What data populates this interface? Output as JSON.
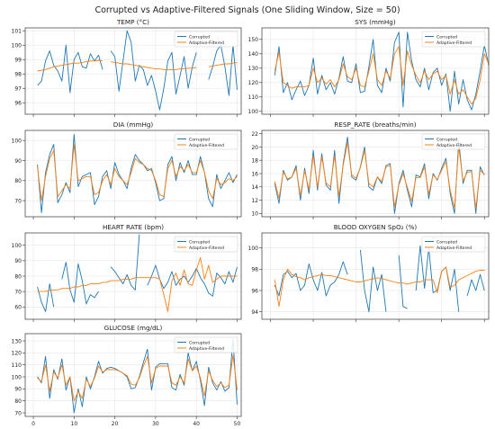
{
  "figure": {
    "title": "Corrupted vs Adaptive-Filtered Signals (One Sliding Window, Size = 50)"
  },
  "colors": {
    "corrupted": "#1f77b4",
    "filtered": "#ff7f0e",
    "grid": "#e6e6e6",
    "axis": "#333333"
  },
  "legend": {
    "corrupted_label": "Corrupted",
    "filtered_label": "Adaptive-Filtered",
    "placement": "top-right"
  },
  "chart_data": [
    {
      "type": "line",
      "title": "TEMP (°C)",
      "xlim": [
        -2,
        51
      ],
      "ylim": [
        95.2,
        101.2
      ],
      "yticks": [
        96,
        97,
        98,
        99,
        100,
        101
      ],
      "xticks": [
        0,
        10,
        20,
        30,
        40,
        50
      ],
      "show_xtick_labels": false,
      "series": [
        {
          "name": "Corrupted",
          "values": [
            null,
            97.2,
            97.5,
            98.9,
            99.6,
            98.6,
            98.2,
            97.5,
            100.0,
            96.7,
            99.0,
            99.5,
            98.5,
            98.4,
            99.4,
            98.9,
            99.3,
            98.3,
            null,
            99.6,
            99.2,
            96.8,
            98.9,
            101.0,
            100.2,
            97.5,
            98.6,
            98.3,
            97.2,
            97.9,
            96.8,
            95.5,
            97.0,
            98.9,
            99.5,
            96.6,
            97.9,
            99.2,
            97.0,
            98.5,
            99.5,
            null,
            null,
            97.6,
            98.5,
            99.6,
            100.0,
            98.5,
            96.5,
            100.0,
            96.9
          ]
        },
        {
          "name": "Adaptive-Filtered",
          "values": [
            null,
            98.2,
            98.25,
            98.3,
            98.4,
            98.5,
            98.55,
            98.6,
            98.65,
            98.7,
            98.75,
            98.75,
            98.8,
            98.85,
            98.9,
            98.9,
            98.95,
            98.9,
            null,
            98.85,
            98.8,
            98.75,
            98.7,
            98.7,
            98.65,
            98.6,
            98.55,
            98.5,
            98.45,
            98.4,
            98.35,
            98.35,
            98.3,
            98.3,
            98.3,
            98.3,
            98.35,
            98.35,
            98.4,
            98.4,
            98.45,
            null,
            null,
            98.5,
            98.55,
            98.6,
            98.65,
            98.7,
            98.7,
            98.75,
            98.8
          ]
        }
      ]
    },
    {
      "type": "line",
      "title": "SYS (mmHg)",
      "xlim": [
        -2,
        51
      ],
      "ylim": [
        98,
        158
      ],
      "yticks": [
        100,
        110,
        120,
        130,
        140,
        150
      ],
      "xticks": [
        0,
        10,
        20,
        30,
        40,
        50
      ],
      "show_xtick_labels": false,
      "series": [
        {
          "name": "Corrupted",
          "values": [
            null,
            125,
            145,
            113,
            120,
            108,
            115,
            121,
            111,
            118,
            137,
            112,
            125,
            115,
            120,
            112,
            123,
            138,
            121,
            120,
            133,
            113,
            114,
            131,
            150,
            118,
            113,
            130,
            121,
            148,
            155,
            103,
            155,
            135,
            122,
            117,
            130,
            115,
            127,
            130,
            118,
            126,
            100,
            128,
            105,
            122,
            108,
            101,
            112,
            128,
            146,
            132
          ]
        },
        {
          "name": "Adaptive-Filtered",
          "values": [
            null,
            128,
            141,
            120,
            118,
            116,
            117,
            117,
            117,
            118,
            130,
            120,
            123,
            119,
            122,
            117,
            122,
            133,
            124,
            122,
            130,
            118,
            117,
            128,
            140,
            122,
            118,
            128,
            123,
            140,
            145,
            118,
            142,
            132,
            125,
            120,
            128,
            122,
            126,
            128,
            122,
            125,
            112,
            122,
            112,
            115,
            110,
            105,
            109,
            122,
            140,
            133
          ]
        }
      ]
    },
    {
      "type": "line",
      "title": "DIA (mmHg)",
      "xlim": [
        -2,
        51
      ],
      "ylim": [
        62,
        105
      ],
      "yticks": [
        70,
        80,
        90,
        100
      ],
      "xticks": [
        0,
        10,
        20,
        30,
        40,
        50
      ],
      "show_xtick_labels": false,
      "series": [
        {
          "name": "Corrupted",
          "values": [
            null,
            88,
            64,
            84,
            93,
            98,
            69,
            73,
            79,
            74,
            103,
            77,
            82,
            83,
            84,
            68,
            72,
            82,
            85,
            76,
            89,
            83,
            80,
            76,
            86,
            93,
            90,
            88,
            85,
            86,
            79,
            70,
            71,
            88,
            92,
            80,
            89,
            84,
            90,
            83,
            83,
            92,
            84,
            71,
            67,
            83,
            76,
            80,
            84,
            79,
            83
          ]
        },
        {
          "name": "Adaptive-Filtered",
          "values": [
            null,
            87,
            70,
            82,
            91,
            95,
            72,
            75,
            78,
            76,
            98,
            80,
            81,
            82,
            82,
            73,
            74,
            80,
            83,
            78,
            86,
            82,
            80,
            78,
            84,
            91,
            89,
            88,
            86,
            85,
            80,
            73,
            72,
            86,
            90,
            82,
            87,
            85,
            88,
            84,
            84,
            90,
            84,
            75,
            71,
            81,
            78,
            79,
            81,
            80,
            82
          ]
        }
      ]
    },
    {
      "type": "line",
      "title": "RESP_RATE (breaths/min)",
      "xlim": [
        -2,
        51
      ],
      "ylim": [
        9.5,
        22.5
      ],
      "yticks": [
        10,
        12,
        14,
        16,
        18,
        20,
        22
      ],
      "xticks": [
        0,
        10,
        20,
        30,
        40,
        50
      ],
      "show_xtick_labels": false,
      "series": [
        {
          "name": "Corrupted",
          "values": [
            null,
            14.5,
            11.5,
            16.5,
            15.0,
            15.5,
            17.2,
            12.0,
            16.8,
            13.0,
            19.5,
            13.5,
            19.0,
            14.3,
            13.5,
            19.5,
            11.5,
            17.5,
            21.5,
            15.5,
            15.0,
            17.0,
            20.0,
            14.0,
            13.5,
            15.5,
            14.5,
            17.2,
            17.5,
            10.0,
            14.5,
            16.5,
            13.5,
            11.0,
            15.8,
            15.5,
            17.5,
            12.2,
            16.0,
            15.0,
            16.8,
            18.3,
            13.0,
            10.0,
            21.0,
            14.5,
            16.5,
            16.5,
            10.0,
            17.0,
            15.8
          ]
        },
        {
          "name": "Adaptive-Filtered",
          "values": [
            null,
            14.8,
            12.3,
            16.2,
            15.2,
            15.5,
            16.8,
            12.7,
            16.4,
            13.6,
            18.7,
            14.0,
            18.5,
            14.6,
            14.0,
            18.7,
            12.6,
            17.2,
            20.7,
            15.8,
            15.3,
            16.9,
            19.5,
            14.5,
            14.0,
            15.5,
            14.8,
            17.0,
            17.2,
            11.0,
            14.3,
            16.0,
            13.9,
            11.8,
            15.4,
            15.4,
            17.0,
            12.9,
            15.8,
            15.1,
            16.5,
            17.8,
            13.5,
            10.8,
            20.0,
            14.9,
            16.2,
            16.3,
            10.8,
            16.5,
            15.9
          ]
        }
      ]
    },
    {
      "type": "line",
      "title": "HEART RATE (bpm)",
      "xlim": [
        -2,
        51
      ],
      "ylim": [
        52,
        108
      ],
      "yticks": [
        60,
        70,
        80,
        90,
        100
      ],
      "xticks": [
        0,
        10,
        20,
        30,
        40,
        50
      ],
      "show_xtick_labels": false,
      "series": [
        {
          "name": "Corrupted",
          "values": [
            null,
            73,
            63,
            57,
            75,
            60,
            null,
            78,
            89,
            71,
            63,
            88,
            77,
            62,
            68,
            66,
            70,
            null,
            null,
            86,
            83,
            79,
            75,
            81,
            74,
            71,
            107,
            null,
            74,
            80,
            87,
            78,
            72,
            76,
            83,
            74,
            78,
            80,
            76,
            80,
            85,
            79,
            75,
            69,
            67,
            82,
            79,
            75,
            83,
            76,
            86
          ]
        },
        {
          "name": "Adaptive-Filtered",
          "values": [
            null,
            70,
            70,
            70,
            71,
            71,
            71,
            72,
            72,
            72,
            73,
            73,
            74,
            74,
            75,
            75,
            75,
            76,
            76,
            77,
            77,
            77,
            78,
            78,
            78,
            79,
            79,
            79,
            79,
            79,
            79,
            78,
            68,
            57,
            77,
            82,
            74,
            84,
            75,
            74,
            84,
            92,
            78,
            87,
            76,
            78,
            80,
            80,
            80,
            80,
            80
          ]
        }
      ]
    },
    {
      "type": "line",
      "title": "BLOOD OXYGEN SpO₂ (%)",
      "xlim": [
        -2,
        51
      ],
      "ylim": [
        93.3,
        101.4
      ],
      "yticks": [
        94,
        96,
        98,
        100
      ],
      "xticks": [
        0,
        10,
        20,
        30,
        40,
        50
      ],
      "show_xtick_labels": false,
      "series": [
        {
          "name": "Corrupted",
          "values": [
            null,
            96.5,
            95.5,
            97.5,
            97.8,
            97.2,
            97.6,
            96.0,
            96.5,
            98.5,
            97.0,
            96.0,
            97.7,
            95.5,
            96.5,
            96.8,
            97.5,
            98.7,
            97.5,
            null,
            null,
            99.8,
            96.0,
            94.0,
            98.2,
            96.0,
            97.5,
            94.0,
            null,
            null,
            99.3,
            94.5,
            94.3,
            null,
            96.0,
            100.2,
            96.2,
            100.0,
            95.8,
            96.0,
            97.8,
            98.2,
            96.0,
            98.0,
            94.0,
            null,
            95.5,
            97.0,
            96.0,
            97.5,
            96.0
          ]
        },
        {
          "name": "Adaptive-Filtered",
          "values": [
            null,
            97.0,
            94.5,
            97.0,
            98.0,
            97.5,
            97.3,
            97.2,
            97.0,
            97.2,
            97.3,
            97.4,
            97.5,
            97.4,
            97.4,
            97.3,
            97.2,
            97.1,
            97.0,
            96.9,
            96.8,
            96.8,
            96.9,
            97.0,
            97.1,
            97.2,
            97.1,
            97.0,
            96.9,
            96.8,
            96.7,
            96.7,
            96.6,
            96.7,
            96.8,
            96.8,
            97.0,
            97.0,
            97.0,
            95.8,
            97.8,
            98.2,
            96.3,
            96.5,
            97.0,
            97.2,
            97.4,
            97.6,
            97.8,
            97.9,
            97.9
          ]
        }
      ]
    },
    {
      "type": "line",
      "title": "GLUCOSE (mg/dL)",
      "xlim": [
        -2,
        51
      ],
      "ylim": [
        67,
        136
      ],
      "yticks": [
        70,
        80,
        90,
        100,
        110,
        120,
        130
      ],
      "xticks": [
        0,
        10,
        20,
        30,
        40,
        50
      ],
      "show_xtick_labels": true,
      "series": [
        {
          "name": "Corrupted",
          "values": [
            null,
            100,
            95,
            117,
            82,
            106,
            98,
            115,
            89,
            100,
            70,
            90,
            75,
            100,
            90,
            100,
            113,
            103,
            107,
            108,
            107,
            105,
            103,
            100,
            90,
            91,
            100,
            112,
            123,
            89,
            108,
            111,
            111,
            111,
            91,
            89,
            102,
            93,
            120,
            105,
            113,
            97,
            76,
            108,
            95,
            89,
            96,
            88,
            91,
            131,
            77
          ]
        },
        {
          "name": "Adaptive-Filtered",
          "values": [
            null,
            99,
            96,
            110,
            88,
            104,
            99,
            110,
            93,
            100,
            80,
            88,
            82,
            98,
            92,
            99,
            109,
            104,
            106,
            106,
            106,
            105,
            103,
            101,
            94,
            93,
            99,
            109,
            117,
            95,
            107,
            109,
            109,
            109,
            95,
            93,
            100,
            95,
            115,
            105,
            109,
            99,
            84,
            105,
            97,
            92,
            95,
            91,
            93,
            118,
            89
          ]
        }
      ]
    }
  ]
}
